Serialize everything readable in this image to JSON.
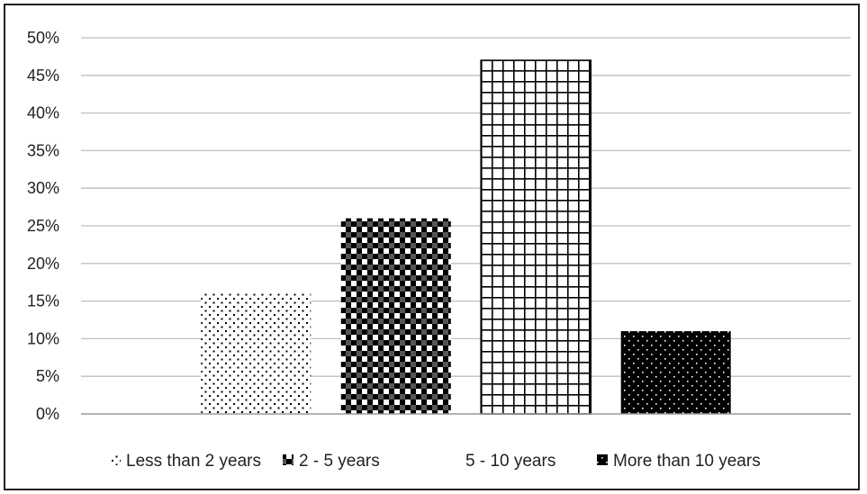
{
  "chart_data": {
    "type": "bar",
    "title": "",
    "xlabel": "",
    "ylabel": "",
    "categories": [
      "Less than 2 years",
      "2 - 5 years",
      "5 - 10 years",
      "More than 10 years"
    ],
    "values": [
      0.16,
      0.26,
      0.47,
      0.11
    ],
    "ylim": [
      0,
      0.5
    ],
    "y_ticks": [
      "0%",
      "5%",
      "10%",
      "15%",
      "20%",
      "25%",
      "30%",
      "35%",
      "40%",
      "45%",
      "50%"
    ],
    "grid": true,
    "legend_position": "bottom",
    "colors": {
      "gridline": "#bfbfbf",
      "bar_ink": "#000000"
    },
    "patterns": [
      "dots-sparse",
      "checker",
      "grid",
      "dots-on-black"
    ]
  }
}
